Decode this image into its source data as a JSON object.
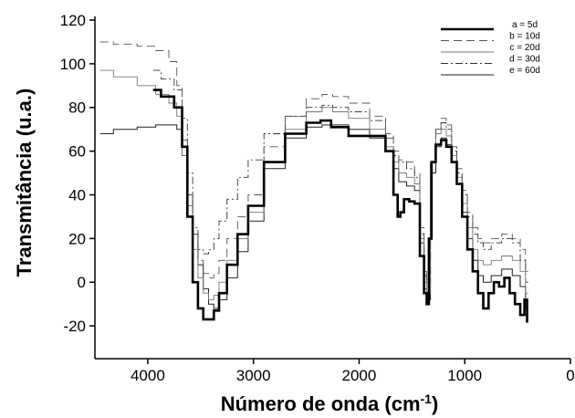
{
  "chart_data": {
    "type": "line",
    "xlabel": "Número de onda (cm",
    "xlabel_sup": "-1",
    "xlabel_end": ")",
    "ylabel": "Transmitância (u.a.)",
    "xlim": [
      4500,
      0
    ],
    "ylim": [
      -35,
      120
    ],
    "x_ticks": [
      4000,
      3000,
      2000,
      1000,
      0
    ],
    "y_ticks": [
      120,
      100,
      80,
      60,
      40,
      20,
      0,
      -20
    ],
    "x_tick_labels": [
      "4000",
      "3000",
      "2000",
      "1000",
      "0"
    ],
    "y_tick_labels": [
      "120",
      "100",
      "80",
      "60",
      "40",
      "20",
      "0",
      "-20"
    ],
    "grid": false,
    "legend_position": "top-right",
    "series": [
      {
        "name": "a = 5d",
        "style": "solid-thick",
        "color": "#000000",
        "x": [
          3950,
          3800,
          3700,
          3650,
          3600,
          3550,
          3500,
          3450,
          3400,
          3350,
          3300,
          3200,
          3100,
          3000,
          2800,
          2600,
          2400,
          2330,
          2200,
          2000,
          1800,
          1700,
          1650,
          1620,
          1600,
          1550,
          1500,
          1450,
          1400,
          1370,
          1350,
          1330,
          1300,
          1250,
          1200,
          1150,
          1100,
          1050,
          1000,
          950,
          900,
          850,
          800,
          750,
          700,
          650,
          600,
          550,
          500,
          450,
          420,
          400
        ],
        "y": [
          88,
          85,
          80,
          62,
          30,
          0,
          -12,
          -17,
          -17,
          -13,
          -5,
          8,
          22,
          35,
          55,
          68,
          73,
          74,
          71,
          67,
          67,
          60,
          40,
          30,
          32,
          38,
          37,
          36,
          12,
          -5,
          -10,
          20,
          55,
          63,
          65,
          62,
          55,
          45,
          30,
          15,
          5,
          -5,
          -12,
          -5,
          0,
          -2,
          2,
          -5,
          -10,
          -15,
          -8,
          -18
        ]
      },
      {
        "name": "b = 10d",
        "style": "dashed",
        "color": "#555555",
        "x": [
          4450,
          4200,
          4000,
          3850,
          3750,
          3700,
          3650,
          3600,
          3550,
          3500,
          3450,
          3400,
          3350,
          3300,
          3200,
          3100,
          3000,
          2800,
          2600,
          2400,
          2300,
          2200,
          2000,
          1800,
          1700,
          1650,
          1600,
          1500,
          1450,
          1400,
          1370,
          1350,
          1300,
          1250,
          1200,
          1150,
          1100,
          1050,
          1000,
          950,
          900,
          850,
          800,
          700,
          600,
          500,
          450,
          400
        ],
        "y": [
          110,
          109,
          108,
          106,
          101,
          90,
          65,
          40,
          22,
          10,
          4,
          2,
          4,
          10,
          20,
          30,
          40,
          62,
          76,
          84,
          86,
          85,
          82,
          76,
          68,
          60,
          56,
          55,
          50,
          25,
          5,
          0,
          55,
          70,
          75,
          72,
          62,
          52,
          42,
          32,
          25,
          20,
          18,
          20,
          22,
          20,
          15,
          5
        ]
      },
      {
        "name": "c = 20d",
        "style": "solid-thin",
        "color": "#777777",
        "x": [
          4450,
          4200,
          4000,
          3850,
          3750,
          3700,
          3650,
          3600,
          3550,
          3500,
          3450,
          3400,
          3350,
          3300,
          3200,
          3100,
          3000,
          2800,
          2600,
          2400,
          2300,
          2200,
          2000,
          1800,
          1700,
          1650,
          1600,
          1500,
          1450,
          1400,
          1370,
          1350,
          1300,
          1250,
          1200,
          1150,
          1100,
          1050,
          1000,
          950,
          900,
          850,
          800,
          700,
          600,
          500,
          450,
          400
        ],
        "y": [
          97,
          94,
          90,
          86,
          82,
          76,
          58,
          35,
          15,
          2,
          -5,
          -8,
          -6,
          0,
          10,
          20,
          32,
          55,
          70,
          78,
          80,
          78,
          75,
          70,
          62,
          55,
          50,
          48,
          45,
          20,
          0,
          -5,
          55,
          68,
          70,
          67,
          58,
          48,
          36,
          25,
          15,
          10,
          8,
          10,
          12,
          10,
          5,
          -5
        ]
      },
      {
        "name": "d = 30d",
        "style": "dashdot",
        "color": "#333333",
        "x": [
          3950,
          3800,
          3700,
          3650,
          3600,
          3550,
          3500,
          3450,
          3400,
          3350,
          3300,
          3200,
          3100,
          3000,
          2800,
          2600,
          2400,
          2300,
          2200,
          2000,
          1800,
          1700,
          1650,
          1600,
          1500,
          1450,
          1400,
          1370,
          1350,
          1300,
          1250,
          1200,
          1150,
          1100,
          1050,
          1000,
          950,
          900,
          850,
          800,
          700,
          600,
          500,
          450,
          400
        ],
        "y": [
          97,
          93,
          88,
          75,
          50,
          25,
          15,
          13,
          15,
          20,
          28,
          38,
          48,
          56,
          68,
          76,
          80,
          81,
          80,
          78,
          74,
          66,
          58,
          55,
          52,
          48,
          22,
          3,
          -2,
          55,
          70,
          73,
          70,
          60,
          50,
          40,
          30,
          22,
          18,
          15,
          18,
          20,
          18,
          10,
          0
        ]
      },
      {
        "name": "e = 60d",
        "style": "solid-thin2",
        "color": "#222222",
        "x": [
          4450,
          4200,
          4000,
          3850,
          3750,
          3700,
          3650,
          3600,
          3550,
          3500,
          3450,
          3400,
          3350,
          3300,
          3200,
          3100,
          3000,
          2800,
          2600,
          2400,
          2300,
          2200,
          2000,
          1800,
          1700,
          1650,
          1600,
          1500,
          1450,
          1400,
          1370,
          1350,
          1300,
          1250,
          1200,
          1150,
          1100,
          1050,
          1000,
          950,
          900,
          850,
          800,
          700,
          600,
          500,
          450,
          400
        ],
        "y": [
          68,
          70,
          71,
          72,
          72,
          70,
          58,
          40,
          22,
          8,
          -3,
          -10,
          -12,
          -8,
          2,
          14,
          28,
          52,
          66,
          71,
          72,
          72,
          70,
          66,
          60,
          52,
          46,
          44,
          42,
          18,
          -3,
          -8,
          50,
          62,
          66,
          63,
          55,
          45,
          32,
          20,
          10,
          3,
          0,
          3,
          6,
          3,
          -2,
          -12
        ]
      }
    ]
  }
}
